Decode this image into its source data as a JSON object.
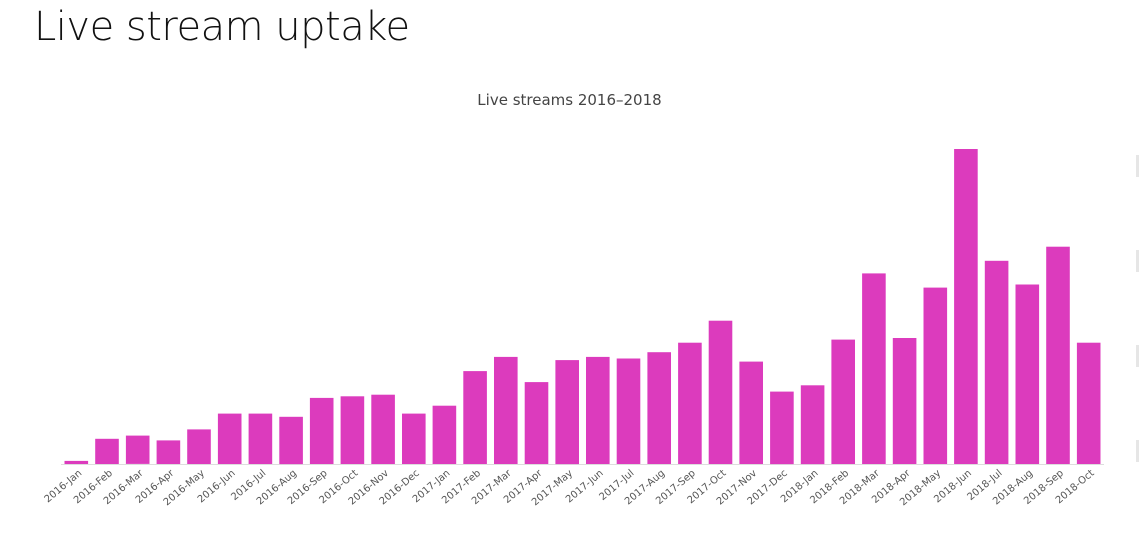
{
  "header": {
    "title": "Live stream uptake"
  },
  "colors": {
    "bar": "#DC3BBD",
    "axis": "#dddddd",
    "tick_label": "#555555",
    "title": "#111111"
  },
  "chart_data": {
    "type": "bar",
    "title": "Live streams 2016–2018",
    "xlabel": "",
    "ylabel": "",
    "ylim": [
      0,
      100
    ],
    "grid": false,
    "legend": "none",
    "categories": [
      "2016-Jan",
      "2016-Feb",
      "2016-Mar",
      "2016-Apr",
      "2016-May",
      "2016-Jun",
      "2016-Jul",
      "2016-Aug",
      "2016-Sep",
      "2016-Oct",
      "2016-Nov",
      "2016-Dec",
      "2017-Jan",
      "2017-Feb",
      "2017-Mar",
      "2017-Apr",
      "2017-May",
      "2017-Jun",
      "2017-Jul",
      "2017-Aug",
      "2017-Sep",
      "2017-Oct",
      "2017-Nov",
      "2017-Dec",
      "2018-Jan",
      "2018-Feb",
      "2018-Mar",
      "2018-Apr",
      "2018-May",
      "2018-Jun",
      "2018-Jul",
      "2018-Aug",
      "2018-Sep",
      "2018-Oct"
    ],
    "values": [
      1,
      8,
      9,
      7.5,
      11,
      16,
      16,
      15,
      21,
      21.5,
      22,
      16,
      18.5,
      29.5,
      34,
      26,
      33,
      34,
      33.5,
      35.5,
      38.5,
      45.5,
      32.5,
      23,
      25,
      39.5,
      60.5,
      40,
      56,
      100,
      64.5,
      57,
      69,
      38.5
    ]
  }
}
